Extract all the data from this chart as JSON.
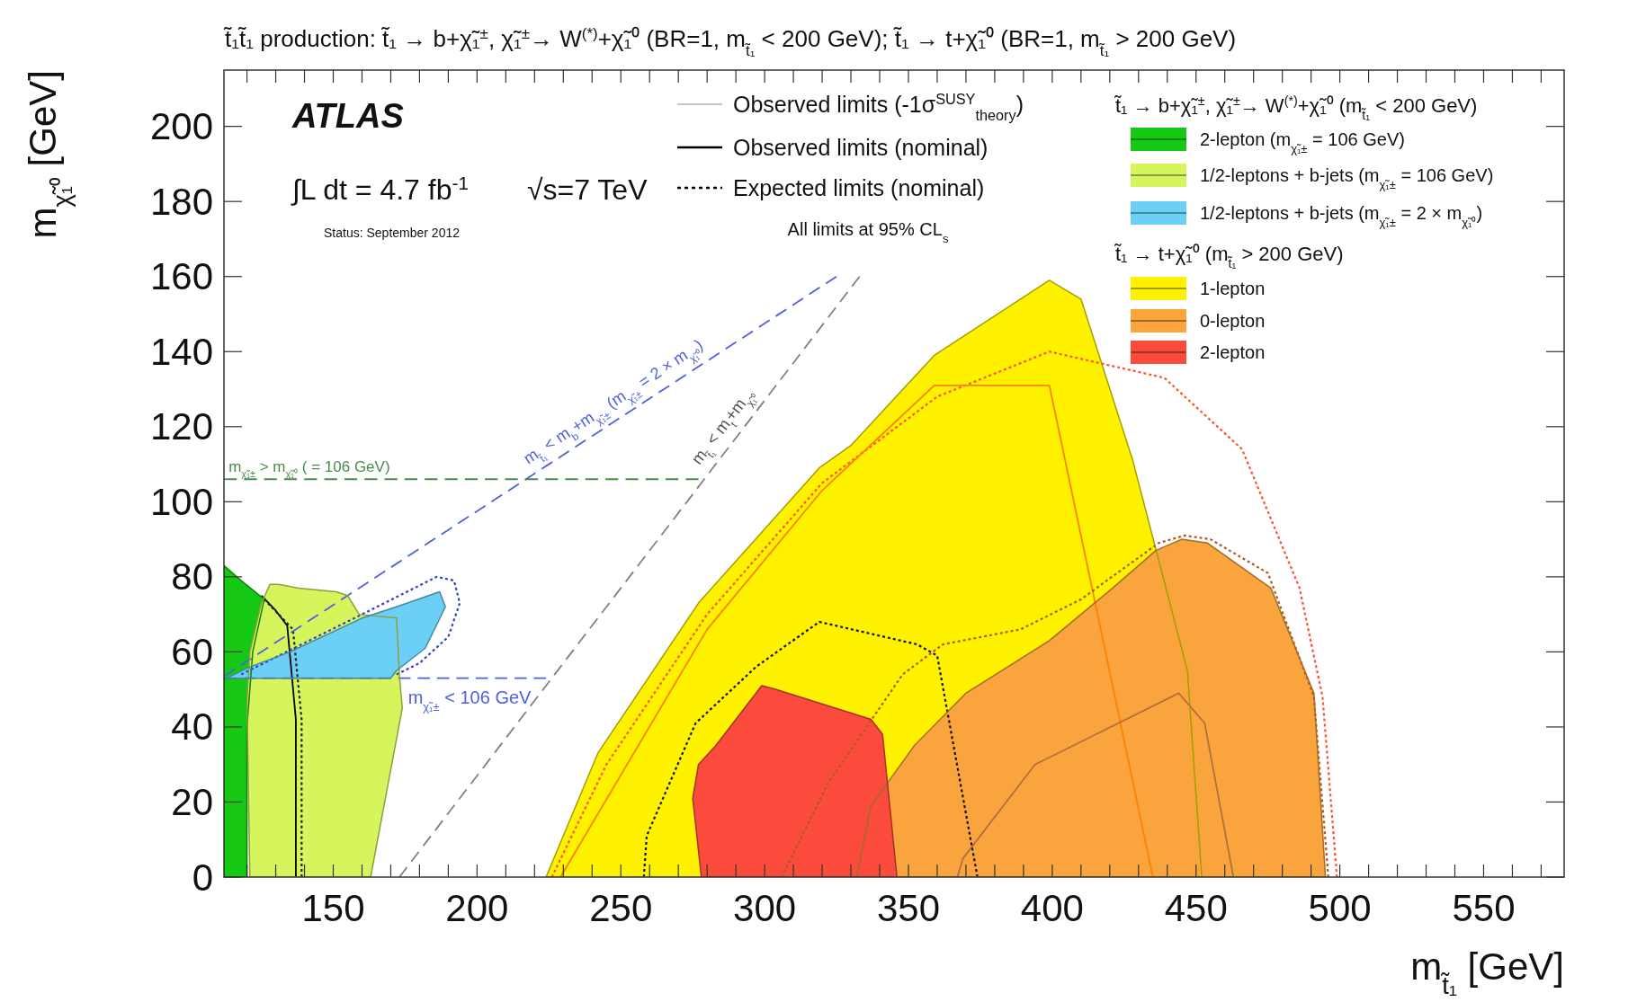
{
  "chart_data": {
    "type": "area",
    "title": "t̃₁t̃₁ production:  t̃₁ → b+χ̃₁$^{±}$, χ̃₁$^{±}$→ W$^{(*)}$+χ̃₁⁰ (BR=1, m$_{t̃₁}$ < 200 GeV);  t̃₁ → t+χ̃₁⁰ (BR=1, m$_{t̃₁}$ > 200 GeV)",
    "xlabel": "m$_{t̃₁}$ [GeV]",
    "ylabel": "m$_{χ̃₁⁰}$ [GeV]",
    "xlim": [
      112,
      578
    ],
    "ylim": [
      0,
      215
    ],
    "xticks": [
      {
        "value": 120,
        "label": null
      },
      {
        "value": 130,
        "label": null
      },
      {
        "value": 140,
        "label": null
      },
      150,
      {
        "value": 160,
        "label": null
      },
      {
        "value": 170,
        "label": null
      },
      {
        "value": 180,
        "label": null
      },
      {
        "value": 190,
        "label": null
      },
      200,
      {
        "value": 210,
        "label": null
      },
      {
        "value": 220,
        "label": null
      },
      {
        "value": 230,
        "label": null
      },
      {
        "value": 240,
        "label": null
      },
      250,
      {
        "value": 260,
        "label": null
      },
      {
        "value": 270,
        "label": null
      },
      {
        "value": 280,
        "label": null
      },
      {
        "value": 290,
        "label": null
      },
      300,
      {
        "value": 310,
        "label": null
      },
      {
        "value": 320,
        "label": null
      },
      {
        "value": 330,
        "label": null
      },
      {
        "value": 340,
        "label": null
      },
      350,
      {
        "value": 360,
        "label": null
      },
      {
        "value": 370,
        "label": null
      },
      {
        "value": 380,
        "label": null
      },
      {
        "value": 390,
        "label": null
      },
      400,
      {
        "value": 410,
        "label": null
      },
      {
        "value": 420,
        "label": null
      },
      {
        "value": 430,
        "label": null
      },
      {
        "value": 440,
        "label": null
      },
      450,
      {
        "value": 460,
        "label": null
      },
      {
        "value": 470,
        "label": null
      },
      {
        "value": 480,
        "label": null
      },
      {
        "value": 490,
        "label": null
      },
      500,
      {
        "value": 510,
        "label": null
      },
      {
        "value": 520,
        "label": null
      },
      {
        "value": 530,
        "label": null
      },
      {
        "value": 540,
        "label": null
      },
      550,
      {
        "value": 560,
        "label": null
      },
      {
        "value": 570,
        "label": null
      }
    ],
    "yticks": [
      0,
      20,
      40,
      60,
      80,
      100,
      120,
      140,
      160,
      180,
      200
    ],
    "grid": false,
    "legend": "top right",
    "series": [
      {
        "name": "2-lepton (m$_{χ̃₁±}$ = 106 GeV)",
        "color": "#14c814",
        "x": [
          112,
          112,
          118,
          126,
          122,
          120,
          120
        ],
        "values": [
          0,
          83,
          79,
          74,
          60,
          40,
          0
        ]
      },
      {
        "name": "1/2-leptons + b-jets (m$_{χ̃₁±}$ = 106 GeV)",
        "color": "#d6f55c",
        "x": [
          121,
          120,
          121,
          125,
          128,
          131,
          138,
          151,
          155,
          159,
          172,
          173,
          174,
          163
        ],
        "values": [
          0,
          47,
          60,
          73,
          78,
          78,
          77,
          76,
          75,
          70,
          69,
          54,
          45,
          0
        ]
      },
      {
        "name": "1/2-leptons + b-jets (m$_{χ̃₁±}$ = 2 × m$_{χ̃₁⁰}$)",
        "color": "#6ccff6",
        "x": [
          113,
          121,
          135,
          160,
          172,
          187,
          189,
          182,
          172,
          170
        ],
        "values": [
          53,
          56,
          60,
          69,
          72,
          76,
          72,
          61,
          55,
          53
        ]
      },
      {
        "name": "1-lepton",
        "color": "#fff200",
        "x": [
          224,
          242,
          277,
          319,
          330,
          359,
          399,
          410,
          428,
          447,
          452
        ],
        "values": [
          0,
          33,
          73,
          109,
          115,
          139,
          159,
          154,
          111,
          55,
          0
        ]
      },
      {
        "name": "0-lepton",
        "color": "#f9a43c",
        "x": [
          332,
          337,
          352,
          370,
          399,
          421,
          436,
          445,
          454,
          476,
          491,
          495
        ],
        "values": [
          0,
          19,
          35,
          49,
          63,
          77,
          87,
          90,
          89,
          77,
          49,
          0
        ]
      },
      {
        "name": "2-lepton",
        "color": "#fa4b3d",
        "x": [
          278,
          275,
          277,
          283,
          292,
          299,
          304,
          337,
          341,
          346
        ],
        "values": [
          0,
          21,
          30,
          35,
          44,
          51,
          50,
          42,
          38,
          0
        ]
      },
      {
        "type": "line",
        "color": "#000000",
        "line_style": "solid",
        "x": [
          137,
          137,
          134,
          130,
          125
        ],
        "values": [
          0,
          42,
          67,
          71,
          75
        ]
      },
      {
        "type": "line",
        "color": "#222222",
        "line_style": "dotted",
        "x": [
          139,
          139,
          136,
          131,
          126
        ],
        "values": [
          0,
          42,
          66,
          70,
          74
        ]
      },
      {
        "type": "line",
        "color": "#3040d0",
        "line_style": "dotted",
        "x": [
          118,
          160,
          186,
          192,
          194,
          190,
          180,
          172
        ],
        "values": [
          54,
          70,
          80,
          79,
          73,
          64,
          57,
          54
        ]
      },
      {
        "type": "line",
        "color": "#ff5030",
        "line_style": "dotted",
        "x": [
          226,
          245,
          280,
          320,
          360,
          399,
          439,
          466,
          486,
          494,
          499
        ],
        "values": [
          0,
          30,
          70,
          105,
          128,
          140,
          133,
          114,
          77,
          48,
          0
        ]
      },
      {
        "type": "line",
        "color": "#ff8000",
        "line_style": "solid",
        "x": [
          229,
          280,
          320,
          359,
          399,
          435
        ],
        "values": [
          0,
          66,
          103,
          131,
          131,
          0
        ]
      },
      {
        "type": "line",
        "color": "#b05a20",
        "line_style": "dotted",
        "x": [
          306,
          322,
          348,
          362,
          389,
          410,
          437,
          446,
          455,
          475,
          491,
          496
        ],
        "values": [
          0,
          25,
          54,
          62,
          66,
          74,
          89,
          91,
          90,
          81,
          48,
          0
        ]
      },
      {
        "type": "line",
        "color": "#b07040",
        "line_style": "solid",
        "x": [
          367,
          369,
          394,
          444,
          453,
          463
        ],
        "values": [
          0,
          5,
          30,
          49,
          41,
          0
        ]
      },
      {
        "type": "line",
        "color": "#111111",
        "line_style": "dotted",
        "x": [
          258,
          259,
          276,
          297,
          319,
          353,
          360,
          374
        ],
        "values": [
          0,
          11,
          41,
          56,
          68,
          62,
          59,
          0
        ]
      },
      {
        "type": "line",
        "color": "#808080",
        "line_style": "dashed",
        "x": [
          173,
          333
        ],
        "values": [
          0,
          160
        ]
      },
      {
        "type": "line",
        "color": "#5060e0",
        "line_style": "dashed",
        "x": [
          112,
          325
        ],
        "values": [
          53.5,
          160
        ]
      },
      {
        "type": "line",
        "color": "#4a8a4a",
        "line_style": "dashed",
        "x": [
          112,
          277
        ],
        "values": [
          106,
          106
        ]
      },
      {
        "type": "line",
        "color": "#5060e0",
        "line_style": "dashed",
        "x": [
          112,
          224
        ],
        "values": [
          53,
          53
        ]
      }
    ],
    "annotations": [
      "ATLAS",
      "∫L dt = 4.7 fb$^{-1}$",
      "√s=7 TeV",
      "Status: September 2012",
      "Observed limits (-1σ$^{SUSY}$$_{theory}$)",
      "Observed limits (nominal)",
      "Expected limits (nominal)",
      "All limits at 95% CL$_{s}$",
      "t̃₁ → b+χ̃₁$^{±}$, χ̃₁$^{±}$→ W$^{(*)}$+χ̃₁⁰ (m$_{t̃₁}$ < 200 GeV)",
      "t̃₁ → t+χ̃₁⁰ (m$_{t̃₁}$ > 200 GeV)",
      {
        "text": "m$_{χ̃₁±}$ > m$_{χ̃₁⁰}$ ( = 106 GeV)",
        "x": 113,
        "y": 106
      },
      {
        "text": "m$_{χ̃₁±}$ < 106 GeV",
        "x": 176,
        "y": 53
      },
      "m$_{t̃₁}$ < m$_{b}$+m$_{χ̃₁±}$ (m$_{χ̃₁±}$ = 2 × m$_{χ̃₁⁰}$)",
      "m$_{t̃₁}$ < m$_{t}$+m$_{χ̃₁⁰}$"
    ]
  }
}
